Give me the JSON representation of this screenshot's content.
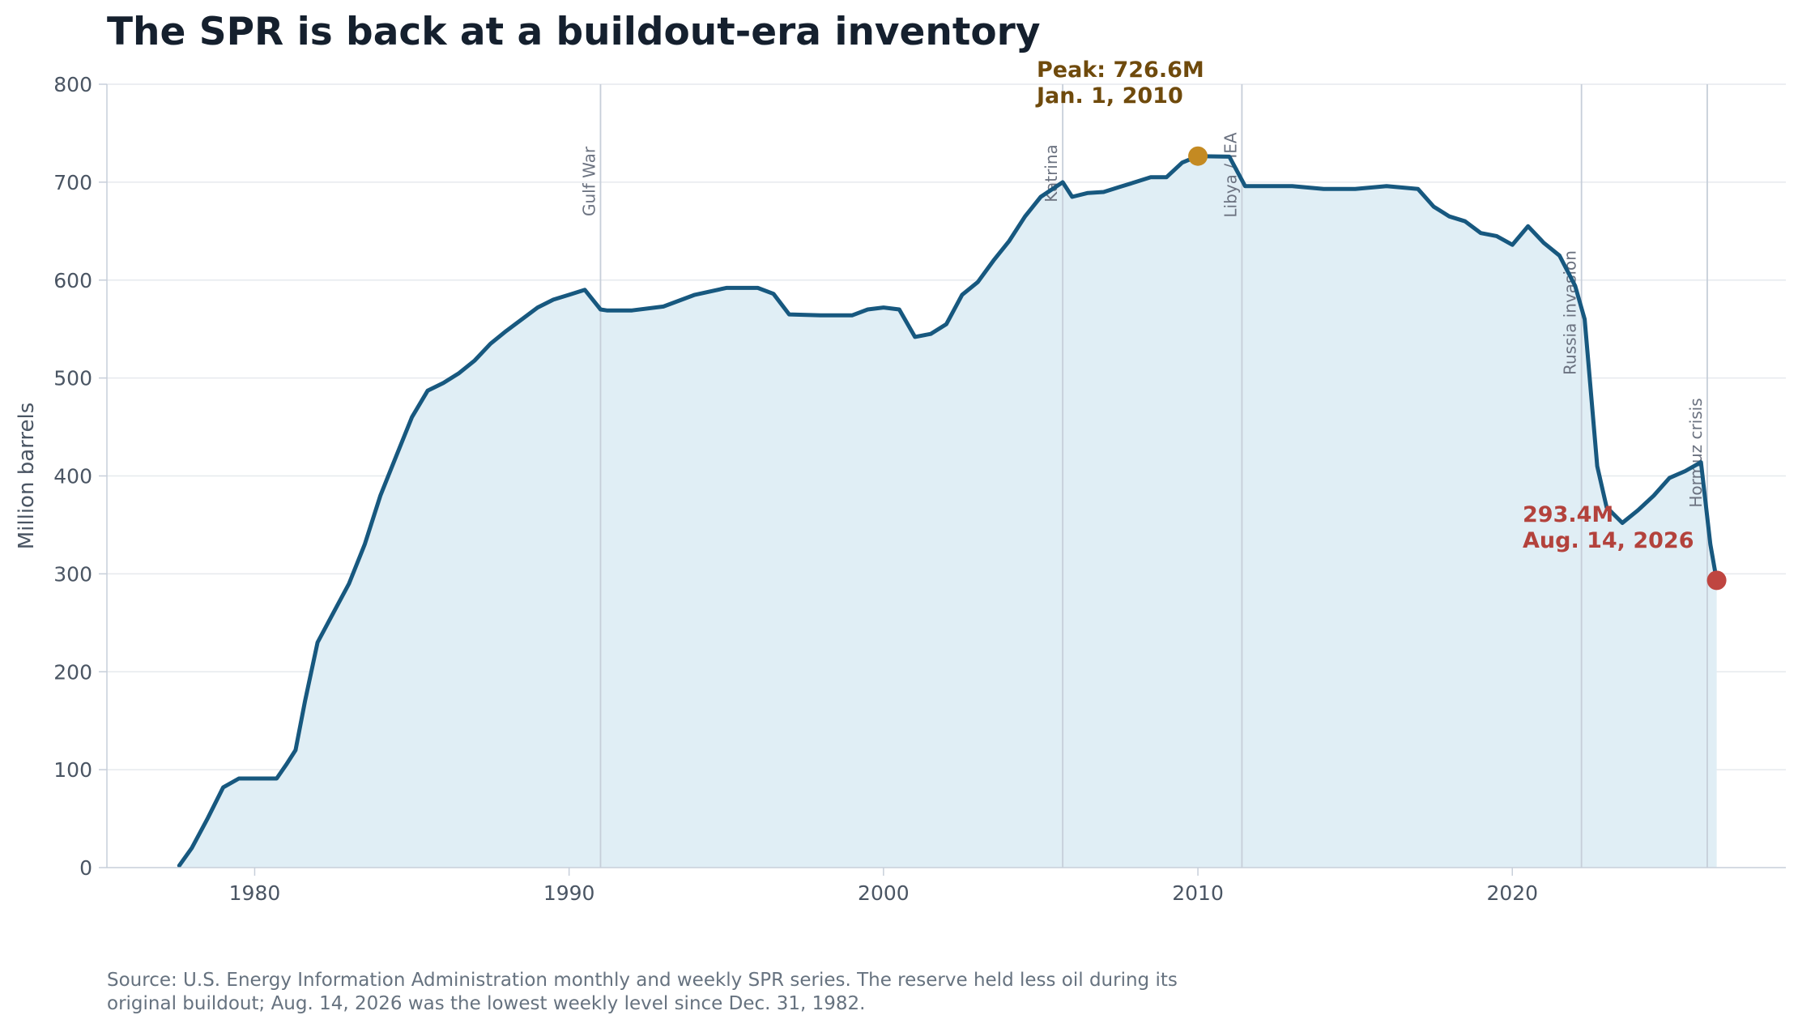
{
  "chart_data": {
    "type": "area",
    "title": "The SPR is back at a buildout-era inventory",
    "xlabel": "",
    "ylabel": "Million barrels",
    "xlim": [
      1975.3,
      2028.7
    ],
    "ylim": [
      0,
      800
    ],
    "xticks": [
      1980,
      1990,
      2000,
      2010,
      2020
    ],
    "yticks": [
      0,
      100,
      200,
      300,
      400,
      500,
      600,
      700,
      800
    ],
    "grid": "horizontal",
    "legend": "none",
    "colors": {
      "line": "#17587f",
      "fill": "#e0eef5",
      "peak": "#c48a22",
      "latest": "#bf4540",
      "peak_text": "#6f4a0c",
      "latest_text": "#b3423c",
      "event_line": "#c6ced9"
    },
    "series": [
      {
        "x": [
          1977.6,
          1978.0,
          1978.5,
          1979.0,
          1979.5,
          1980.0,
          1980.7,
          1981.0,
          1981.3,
          1981.6,
          1982.0,
          1982.5,
          1983.0,
          1983.5,
          1984.0,
          1984.5,
          1985.0,
          1985.5,
          1986.0,
          1986.5,
          1987.0,
          1987.5,
          1988.0,
          1988.5,
          1989.0,
          1989.5,
          1990.0,
          1990.5,
          1991.0,
          1991.2,
          1992.0,
          1993.0,
          1994.0,
          1995.0,
          1996.0,
          1996.5,
          1997.0,
          1998.0,
          1999.0,
          1999.5,
          2000.0,
          2000.5,
          2001.0,
          2001.5,
          2002.0,
          2002.5,
          2003.0,
          2003.5,
          2004.0,
          2004.5,
          2005.0,
          2005.7,
          2006.0,
          2006.5,
          2007.0,
          2007.5,
          2008.0,
          2008.5,
          2009.0,
          2009.5,
          2010.0,
          2011.0,
          2011.5,
          2012.0,
          2013.0,
          2014.0,
          2015.0,
          2016.0,
          2017.0,
          2017.5,
          2018.0,
          2018.5,
          2019.0,
          2019.5,
          2020.0,
          2020.5,
          2021.0,
          2021.5,
          2022.0,
          2022.3,
          2022.7,
          2023.0,
          2023.5,
          2024.0,
          2024.5,
          2025.0,
          2025.5,
          2026.0,
          2026.3,
          2026.5
        ],
        "values": [
          2,
          20,
          50,
          82,
          91,
          91,
          91,
          105,
          120,
          170,
          230,
          260,
          290,
          330,
          380,
          420,
          460,
          487,
          495,
          505,
          518,
          535,
          548,
          560,
          572,
          580,
          585,
          590,
          570,
          569,
          569,
          573,
          585,
          592,
          592,
          586,
          565,
          564,
          564,
          570,
          572,
          570,
          542,
          545,
          555,
          585,
          598,
          620,
          640,
          665,
          685,
          700,
          685,
          689,
          690,
          695,
          700,
          705,
          705,
          720,
          726.6,
          726,
          696,
          696,
          696,
          693,
          693,
          696,
          693,
          675,
          665,
          660,
          648,
          645,
          636,
          655,
          638,
          625,
          594,
          560,
          410,
          368,
          352,
          365,
          380,
          398,
          405,
          414,
          330,
          293.4
        ]
      }
    ],
    "events": [
      {
        "label": "Gulf War",
        "x": 1991.0
      },
      {
        "label": "Katrina",
        "x": 2005.7
      },
      {
        "label": "Libya / IEA",
        "x": 2011.4
      },
      {
        "label": "Russia invasion",
        "x": 2022.2
      },
      {
        "label": "Hormuz crisis",
        "x": 2026.2
      }
    ],
    "annotations": {
      "peak": {
        "x": 2010.0,
        "y": 726.6,
        "line1": "Peak: 726.6M",
        "line2": "Jan. 1, 2010"
      },
      "latest": {
        "x": 2026.5,
        "y": 293.4,
        "line1": "293.4M",
        "line2": "Aug. 14, 2026"
      }
    },
    "source_lines": [
      "Source: U.S. Energy Information Administration monthly and weekly SPR series. The reserve held less oil during its",
      "original buildout; Aug. 14, 2026 was the lowest weekly level since Dec. 31, 1982."
    ]
  }
}
